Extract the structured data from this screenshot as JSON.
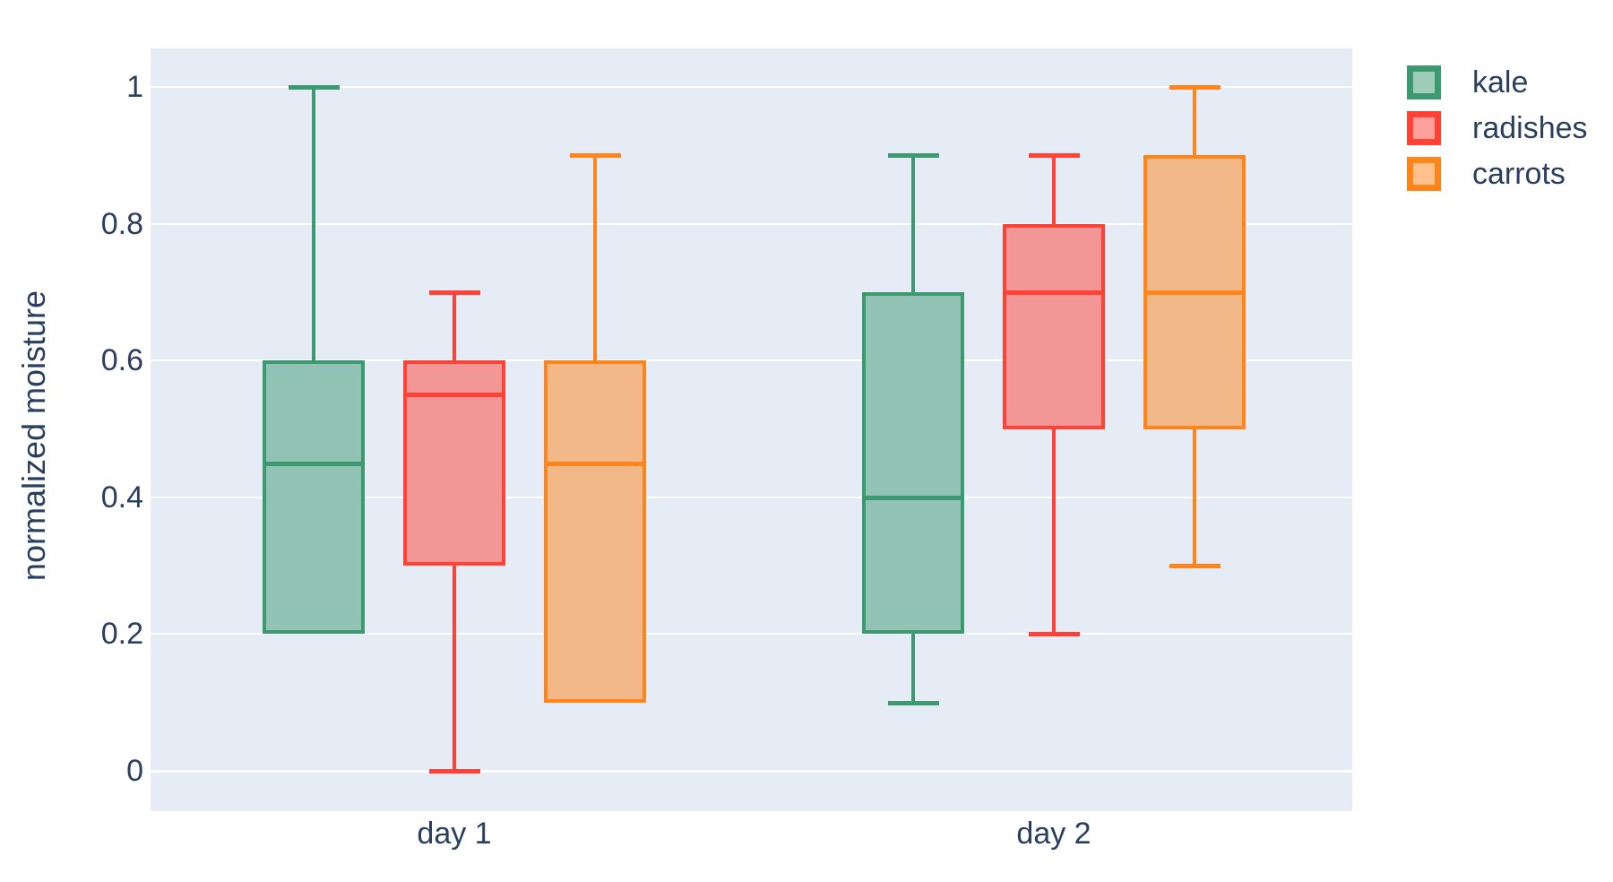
{
  "chart_data": {
    "type": "box",
    "boxmode": "group",
    "title": "",
    "xlabel": "",
    "ylabel": "normalized moisture",
    "categories": [
      "day 1",
      "day 2"
    ],
    "ytick_labels": [
      "0",
      "0.2",
      "0.4",
      "0.6",
      "0.8",
      "1"
    ],
    "yticks": [
      0,
      0.2,
      0.4,
      0.6,
      0.8,
      1
    ],
    "ylim": [
      -0.06,
      1.06
    ],
    "grid": true,
    "legend_position": "outside-top-right",
    "plot_bgcolor": "#E5ECF6",
    "grid_color": "#FFFFFF",
    "text_color": "#2A3F5F",
    "series": [
      {
        "name": "kale",
        "line_color": "#3D9970",
        "fill_color": "#91C2B3",
        "legend_fill": "#9ECCB8",
        "boxes": [
          {
            "category": "day 1",
            "min": 0.2,
            "q1": 0.2,
            "median": 0.45,
            "q3": 0.6,
            "max": 1.0
          },
          {
            "category": "day 2",
            "min": 0.1,
            "q1": 0.2,
            "median": 0.4,
            "q3": 0.7,
            "max": 0.9
          }
        ]
      },
      {
        "name": "radishes",
        "line_color": "#FF4136",
        "fill_color": "#F29696",
        "legend_fill": "#FFA09B",
        "boxes": [
          {
            "category": "day 1",
            "min": 0.0,
            "q1": 0.3,
            "median": 0.55,
            "q3": 0.6,
            "max": 0.7
          },
          {
            "category": "day 2",
            "min": 0.2,
            "q1": 0.5,
            "median": 0.7,
            "q3": 0.8,
            "max": 0.9
          }
        ]
      },
      {
        "name": "carrots",
        "line_color": "#FF851B",
        "fill_color": "#F2B888",
        "legend_fill": "#FFC28D",
        "boxes": [
          {
            "category": "day 1",
            "min": 0.1,
            "q1": 0.1,
            "median": 0.45,
            "q3": 0.6,
            "max": 0.9
          },
          {
            "category": "day 2",
            "min": 0.3,
            "q1": 0.5,
            "median": 0.7,
            "q3": 0.9,
            "max": 1.0
          }
        ]
      }
    ]
  }
}
